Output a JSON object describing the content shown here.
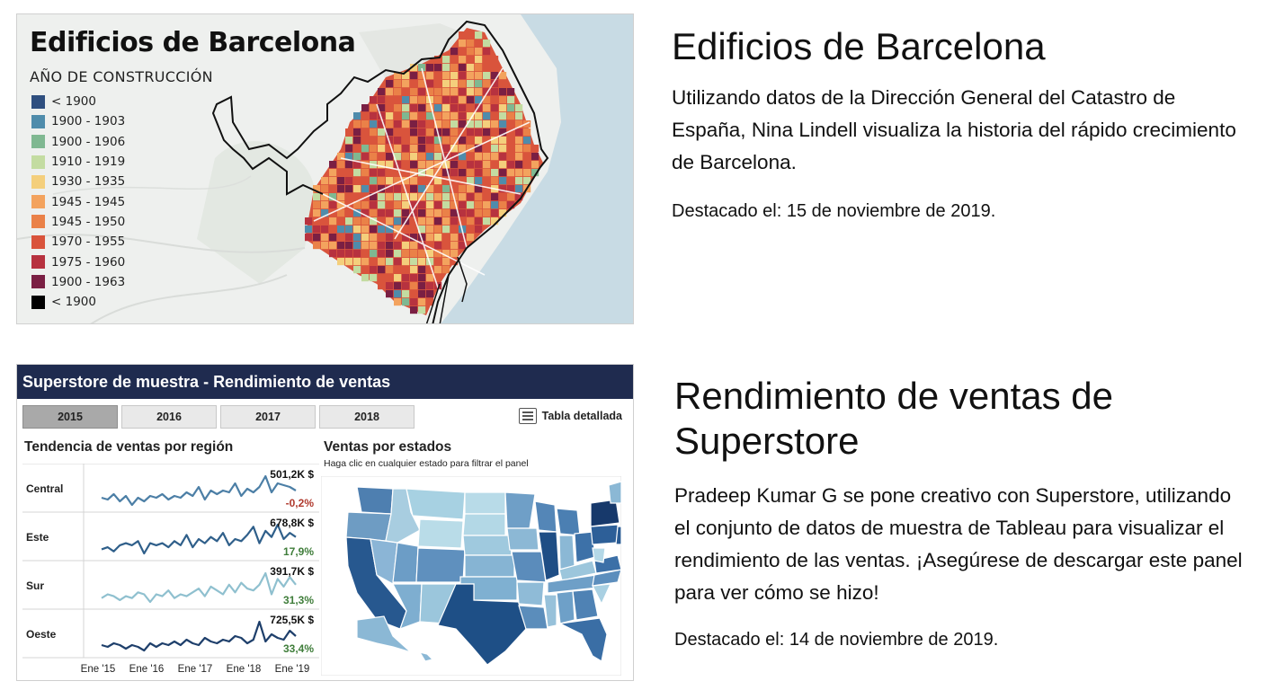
{
  "card1": {
    "map_title": "Edificios de Barcelona",
    "legend_title": "AÑO DE CONSTRUCCIÓN",
    "legend": [
      {
        "label": "< 1900",
        "color": "#2f4f7f"
      },
      {
        "label": "1900 - 1903",
        "color": "#4f8cab"
      },
      {
        "label": "1900 - 1906",
        "color": "#7fb891"
      },
      {
        "label": "1910 - 1919",
        "color": "#c3dca1"
      },
      {
        "label": "1930 - 1935",
        "color": "#f4cf7c"
      },
      {
        "label": "1945 - 1945",
        "color": "#f3a35e"
      },
      {
        "label": "1945 - 1950",
        "color": "#ea8148"
      },
      {
        "label": "1970 - 1955",
        "color": "#d9543c"
      },
      {
        "label": "1975 - 1960",
        "color": "#b7323f"
      },
      {
        "label": "1900 - 1963",
        "color": "#7a1f43"
      },
      {
        "label": "< 1900",
        "color": "#000000"
      }
    ],
    "heading": "Edificios de Barcelona",
    "description": "Utilizando datos de la Dirección General del Catastro de España, Nina Lindell visualiza la historia del rápido crecimiento de Barcelona.",
    "date": "Destacado el: 15 de noviembre de 2019."
  },
  "card2": {
    "dashboard_title": "Superstore de muestra - Rendimiento de ventas",
    "years": [
      "2015",
      "2016",
      "2017",
      "2018"
    ],
    "active_year": "2015",
    "table_link": "Tabla detallada",
    "table_icon": "list-icon",
    "trend_title": "Tendencia de ventas por región",
    "states_title": "Ventas por estados",
    "states_subtitle": "Haga clic en cualquier estado para filtrar el panel",
    "regions": [
      {
        "name": "Central",
        "total": "501,2K $",
        "change": "-0,2%",
        "change_color": "#b03a2e",
        "line_color": "#4c7fa6",
        "values": [
          6,
          5,
          8,
          4,
          7,
          2,
          6,
          4,
          7,
          6,
          8,
          5,
          7,
          6,
          9,
          7,
          12,
          5,
          10,
          8,
          10,
          9,
          14,
          7,
          11,
          9,
          12,
          18,
          9,
          14,
          13,
          12,
          10
        ]
      },
      {
        "name": "Este",
        "total": "678,8K $",
        "change": "17,9%",
        "change_color": "#3f7d3a",
        "line_color": "#2f5f8a",
        "values": [
          5,
          6,
          4,
          7,
          8,
          7,
          9,
          3,
          8,
          7,
          8,
          6,
          9,
          7,
          12,
          6,
          10,
          8,
          11,
          9,
          13,
          7,
          10,
          9,
          12,
          16,
          8,
          14,
          11,
          17,
          10,
          13,
          11
        ]
      },
      {
        "name": "Sur",
        "total": "391,7K $",
        "change": "31,3%",
        "change_color": "#3f7d3a",
        "line_color": "#8fc0cf",
        "values": [
          5,
          7,
          6,
          4,
          6,
          5,
          8,
          7,
          3,
          7,
          6,
          9,
          5,
          7,
          6,
          8,
          10,
          6,
          11,
          9,
          7,
          12,
          8,
          13,
          10,
          9,
          12,
          18,
          7,
          15,
          11,
          16,
          12
        ]
      },
      {
        "name": "Oeste",
        "total": "725,5K $",
        "change": "33,4%",
        "change_color": "#3f7d3a",
        "line_color": "#1e3f6b",
        "values": [
          6,
          5,
          7,
          6,
          4,
          6,
          5,
          3,
          7,
          5,
          7,
          6,
          8,
          6,
          9,
          7,
          6,
          10,
          8,
          7,
          9,
          8,
          11,
          10,
          7,
          9,
          19,
          8,
          12,
          10,
          9,
          14,
          11
        ]
      }
    ],
    "x_labels": [
      "Ene '15",
      "Ene '16",
      "Ene '17",
      "Ene '18",
      "Ene '19"
    ],
    "heading_line1": "Rendimiento de ventas de",
    "heading_line2": "Superstore",
    "description": "Pradeep Kumar G se pone creativo con Superstore, utilizando el conjunto de datos de muestra de Tableau para visualizar el rendimiento de las ventas. ¡Asegúrese de descargar este panel para ver cómo se hizo!",
    "date": "Destacado el: 14 de noviembre de 2019."
  }
}
